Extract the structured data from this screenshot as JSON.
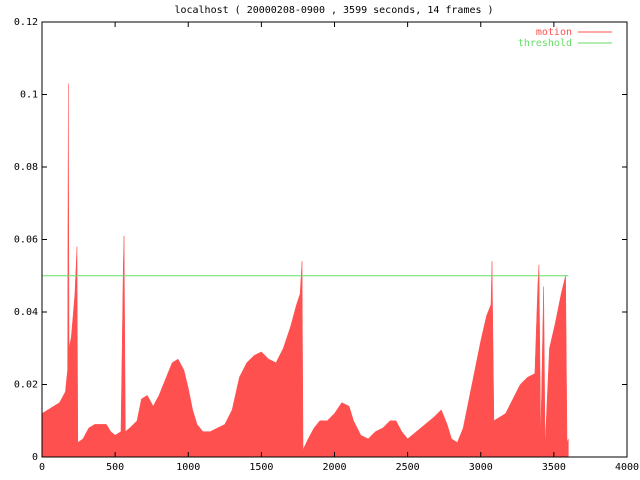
{
  "chart_data": {
    "type": "area",
    "title": "localhost ( 20000208-0900 , 3599 seconds, 14 frames )",
    "xlim": [
      0,
      4000
    ],
    "xticks": [
      0,
      500,
      1000,
      1500,
      2000,
      2500,
      3000,
      3500,
      4000
    ],
    "ylim": [
      0,
      0.12
    ],
    "yticks": [
      0,
      0.02,
      0.04,
      0.06,
      0.08,
      0.1,
      0.12
    ],
    "legend": "top-right",
    "series": [
      {
        "name": "motion",
        "color": "#ff5050",
        "kind": "area",
        "x": [
          0,
          40,
          80,
          120,
          160,
          175,
          180,
          185,
          200,
          215,
          225,
          239,
          245,
          280,
          320,
          360,
          400,
          440,
          470,
          500,
          540,
          556,
          561,
          570,
          600,
          650,
          680,
          720,
          760,
          800,
          850,
          890,
          930,
          970,
          1000,
          1030,
          1060,
          1100,
          1150,
          1200,
          1250,
          1300,
          1350,
          1400,
          1450,
          1500,
          1550,
          1600,
          1650,
          1700,
          1740,
          1765,
          1778,
          1785,
          1820,
          1860,
          1900,
          1950,
          2000,
          2050,
          2100,
          2130,
          2180,
          2230,
          2280,
          2330,
          2380,
          2420,
          2460,
          2500,
          2560,
          2620,
          2680,
          2730,
          2770,
          2800,
          2840,
          2880,
          2920,
          2960,
          3000,
          3040,
          3070,
          3077,
          3090,
          3130,
          3170,
          3220,
          3270,
          3320,
          3370,
          3390,
          3398,
          3410,
          3430,
          3440,
          3470,
          3510,
          3550,
          3580,
          3590,
          3599
        ],
        "values": [
          0.012,
          0.013,
          0.014,
          0.015,
          0.018,
          0.024,
          0.103,
          0.03,
          0.033,
          0.04,
          0.045,
          0.058,
          0.004,
          0.005,
          0.008,
          0.009,
          0.009,
          0.009,
          0.007,
          0.006,
          0.007,
          0.053,
          0.061,
          0.007,
          0.008,
          0.01,
          0.016,
          0.017,
          0.014,
          0.017,
          0.022,
          0.026,
          0.027,
          0.024,
          0.019,
          0.013,
          0.009,
          0.007,
          0.007,
          0.008,
          0.009,
          0.013,
          0.022,
          0.026,
          0.028,
          0.029,
          0.027,
          0.026,
          0.03,
          0.036,
          0.042,
          0.045,
          0.054,
          0.002,
          0.005,
          0.008,
          0.01,
          0.01,
          0.012,
          0.015,
          0.014,
          0.01,
          0.006,
          0.005,
          0.007,
          0.008,
          0.01,
          0.01,
          0.007,
          0.005,
          0.007,
          0.009,
          0.011,
          0.013,
          0.009,
          0.005,
          0.004,
          0.008,
          0.016,
          0.024,
          0.032,
          0.039,
          0.042,
          0.054,
          0.01,
          0.011,
          0.012,
          0.016,
          0.02,
          0.022,
          0.023,
          0.047,
          0.053,
          0.005,
          0.047,
          0.003,
          0.03,
          0.037,
          0.045,
          0.05,
          0.004,
          0.005
        ]
      },
      {
        "name": "threshold",
        "color": "#66dd66",
        "kind": "line",
        "x": [
          0,
          3599
        ],
        "values": [
          0.05,
          0.05
        ]
      }
    ]
  }
}
